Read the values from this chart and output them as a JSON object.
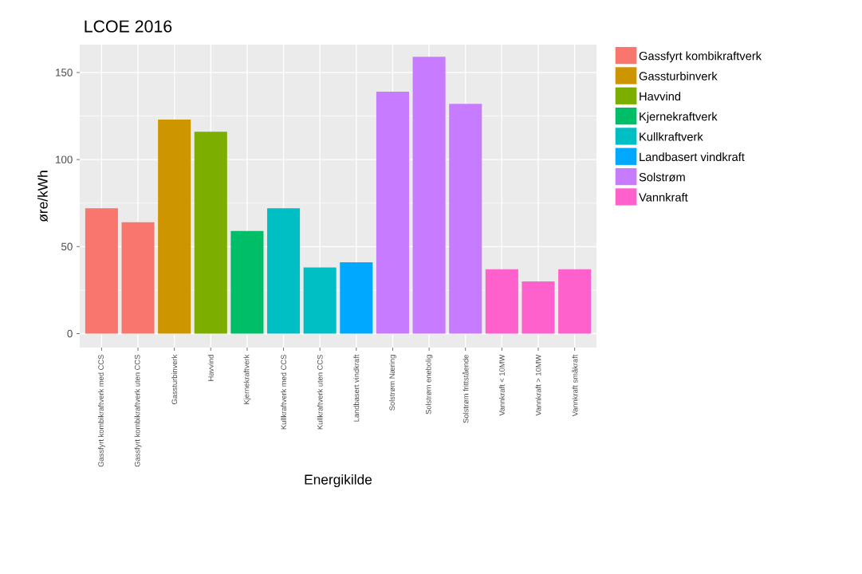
{
  "chart_data": {
    "type": "bar",
    "title": "LCOE 2016",
    "xlabel": "Energikilde",
    "ylabel": "øre/kWh",
    "categories": [
      "Gassfyrt kombikraftverk med CCS",
      "Gassfyrt kombikraftverk uten CCS",
      "Gassturbinverk",
      "Havvind",
      "Kjernekraftverk",
      "Kullkraftverk med CCS",
      "Kullkraftverk uten CCS",
      "Landbasert vindkraft",
      "Solstrøm Næring",
      "Solstrøm enebolig",
      "Solstrøm frittstående",
      "Vannkraft < 10MW",
      "Vannkraft > 10MW",
      "Vannkraft småkraft"
    ],
    "series": [
      {
        "name": "Gassfyrt kombikraftverk",
        "color": "#f8766d",
        "values": [
          72,
          64,
          null,
          null,
          null,
          null,
          null,
          null,
          null,
          null,
          null,
          null,
          null,
          null
        ]
      },
      {
        "name": "Gassturbinverk",
        "color": "#cd9600",
        "values": [
          null,
          null,
          123,
          null,
          null,
          null,
          null,
          null,
          null,
          null,
          null,
          null,
          null,
          null
        ]
      },
      {
        "name": "Havvind",
        "color": "#7cae00",
        "values": [
          null,
          null,
          null,
          116,
          null,
          null,
          null,
          null,
          null,
          null,
          null,
          null,
          null,
          null
        ]
      },
      {
        "name": "Kjernekraftverk",
        "color": "#00be67",
        "values": [
          null,
          null,
          null,
          null,
          59,
          null,
          null,
          null,
          null,
          null,
          null,
          null,
          null,
          null
        ]
      },
      {
        "name": "Kullkraftverk",
        "color": "#00bfc4",
        "values": [
          null,
          null,
          null,
          null,
          null,
          72,
          38,
          null,
          null,
          null,
          null,
          null,
          null,
          null
        ]
      },
      {
        "name": "Landbasert vindkraft",
        "color": "#00a9ff",
        "values": [
          null,
          null,
          null,
          null,
          null,
          null,
          null,
          41,
          null,
          null,
          null,
          null,
          null,
          null
        ]
      },
      {
        "name": "Solstrøm",
        "color": "#c77cff",
        "values": [
          null,
          null,
          null,
          null,
          null,
          null,
          null,
          null,
          139,
          159,
          132,
          null,
          null,
          null
        ]
      },
      {
        "name": "Vannkraft",
        "color": "#ff61cc",
        "values": [
          null,
          null,
          null,
          null,
          null,
          null,
          null,
          null,
          null,
          null,
          null,
          37,
          30,
          37
        ]
      }
    ],
    "ylim": [
      -8,
      166
    ],
    "yticks": [
      0,
      50,
      100,
      150
    ],
    "grid": true,
    "legend": "right"
  }
}
